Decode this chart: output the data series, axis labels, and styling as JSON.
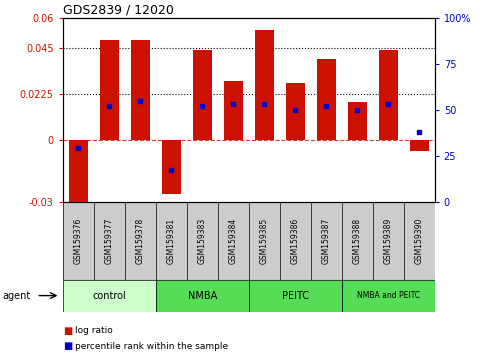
{
  "title": "GDS2839 / 12020",
  "samples": [
    "GSM159376",
    "GSM159377",
    "GSM159378",
    "GSM159381",
    "GSM159383",
    "GSM159384",
    "GSM159385",
    "GSM159386",
    "GSM159387",
    "GSM159388",
    "GSM159389",
    "GSM159390"
  ],
  "log_ratio": [
    -0.033,
    0.049,
    0.049,
    -0.026,
    0.044,
    0.029,
    0.054,
    0.028,
    0.04,
    0.019,
    0.044,
    -0.005
  ],
  "percentile_rank": [
    29,
    52,
    55,
    17,
    52,
    53,
    53,
    50,
    52,
    50,
    53,
    38
  ],
  "group_defs": [
    {
      "label": "control",
      "start": 0,
      "end": 2,
      "color": "#ccffcc"
    },
    {
      "label": "NMBA",
      "start": 3,
      "end": 5,
      "color": "#55dd55"
    },
    {
      "label": "PEITC",
      "start": 6,
      "end": 8,
      "color": "#55dd55"
    },
    {
      "label": "NMBA and PEITC",
      "start": 9,
      "end": 11,
      "color": "#55dd55"
    }
  ],
  "bar_color": "#cc1100",
  "percentile_color": "#0000cc",
  "ylim_left": [
    -0.03,
    0.06
  ],
  "ylim_right": [
    0,
    100
  ],
  "yticks_left": [
    -0.03,
    0.0,
    0.0225,
    0.045,
    0.06
  ],
  "yticks_left_labels": [
    "-0.03",
    "0",
    "0.0225",
    "0.045",
    "0.06"
  ],
  "yticks_right": [
    0,
    25,
    50,
    75,
    100
  ],
  "yticks_right_labels": [
    "0",
    "25",
    "50",
    "75",
    "100%"
  ],
  "hlines": [
    0.045,
    0.0225
  ],
  "bar_width": 0.6,
  "sample_box_color": "#cccccc",
  "zero_line_color": "#cc1100",
  "agent_label": "agent",
  "legend_items": [
    {
      "color": "#cc1100",
      "label": "log ratio"
    },
    {
      "color": "#0000cc",
      "label": "percentile rank within the sample"
    }
  ]
}
